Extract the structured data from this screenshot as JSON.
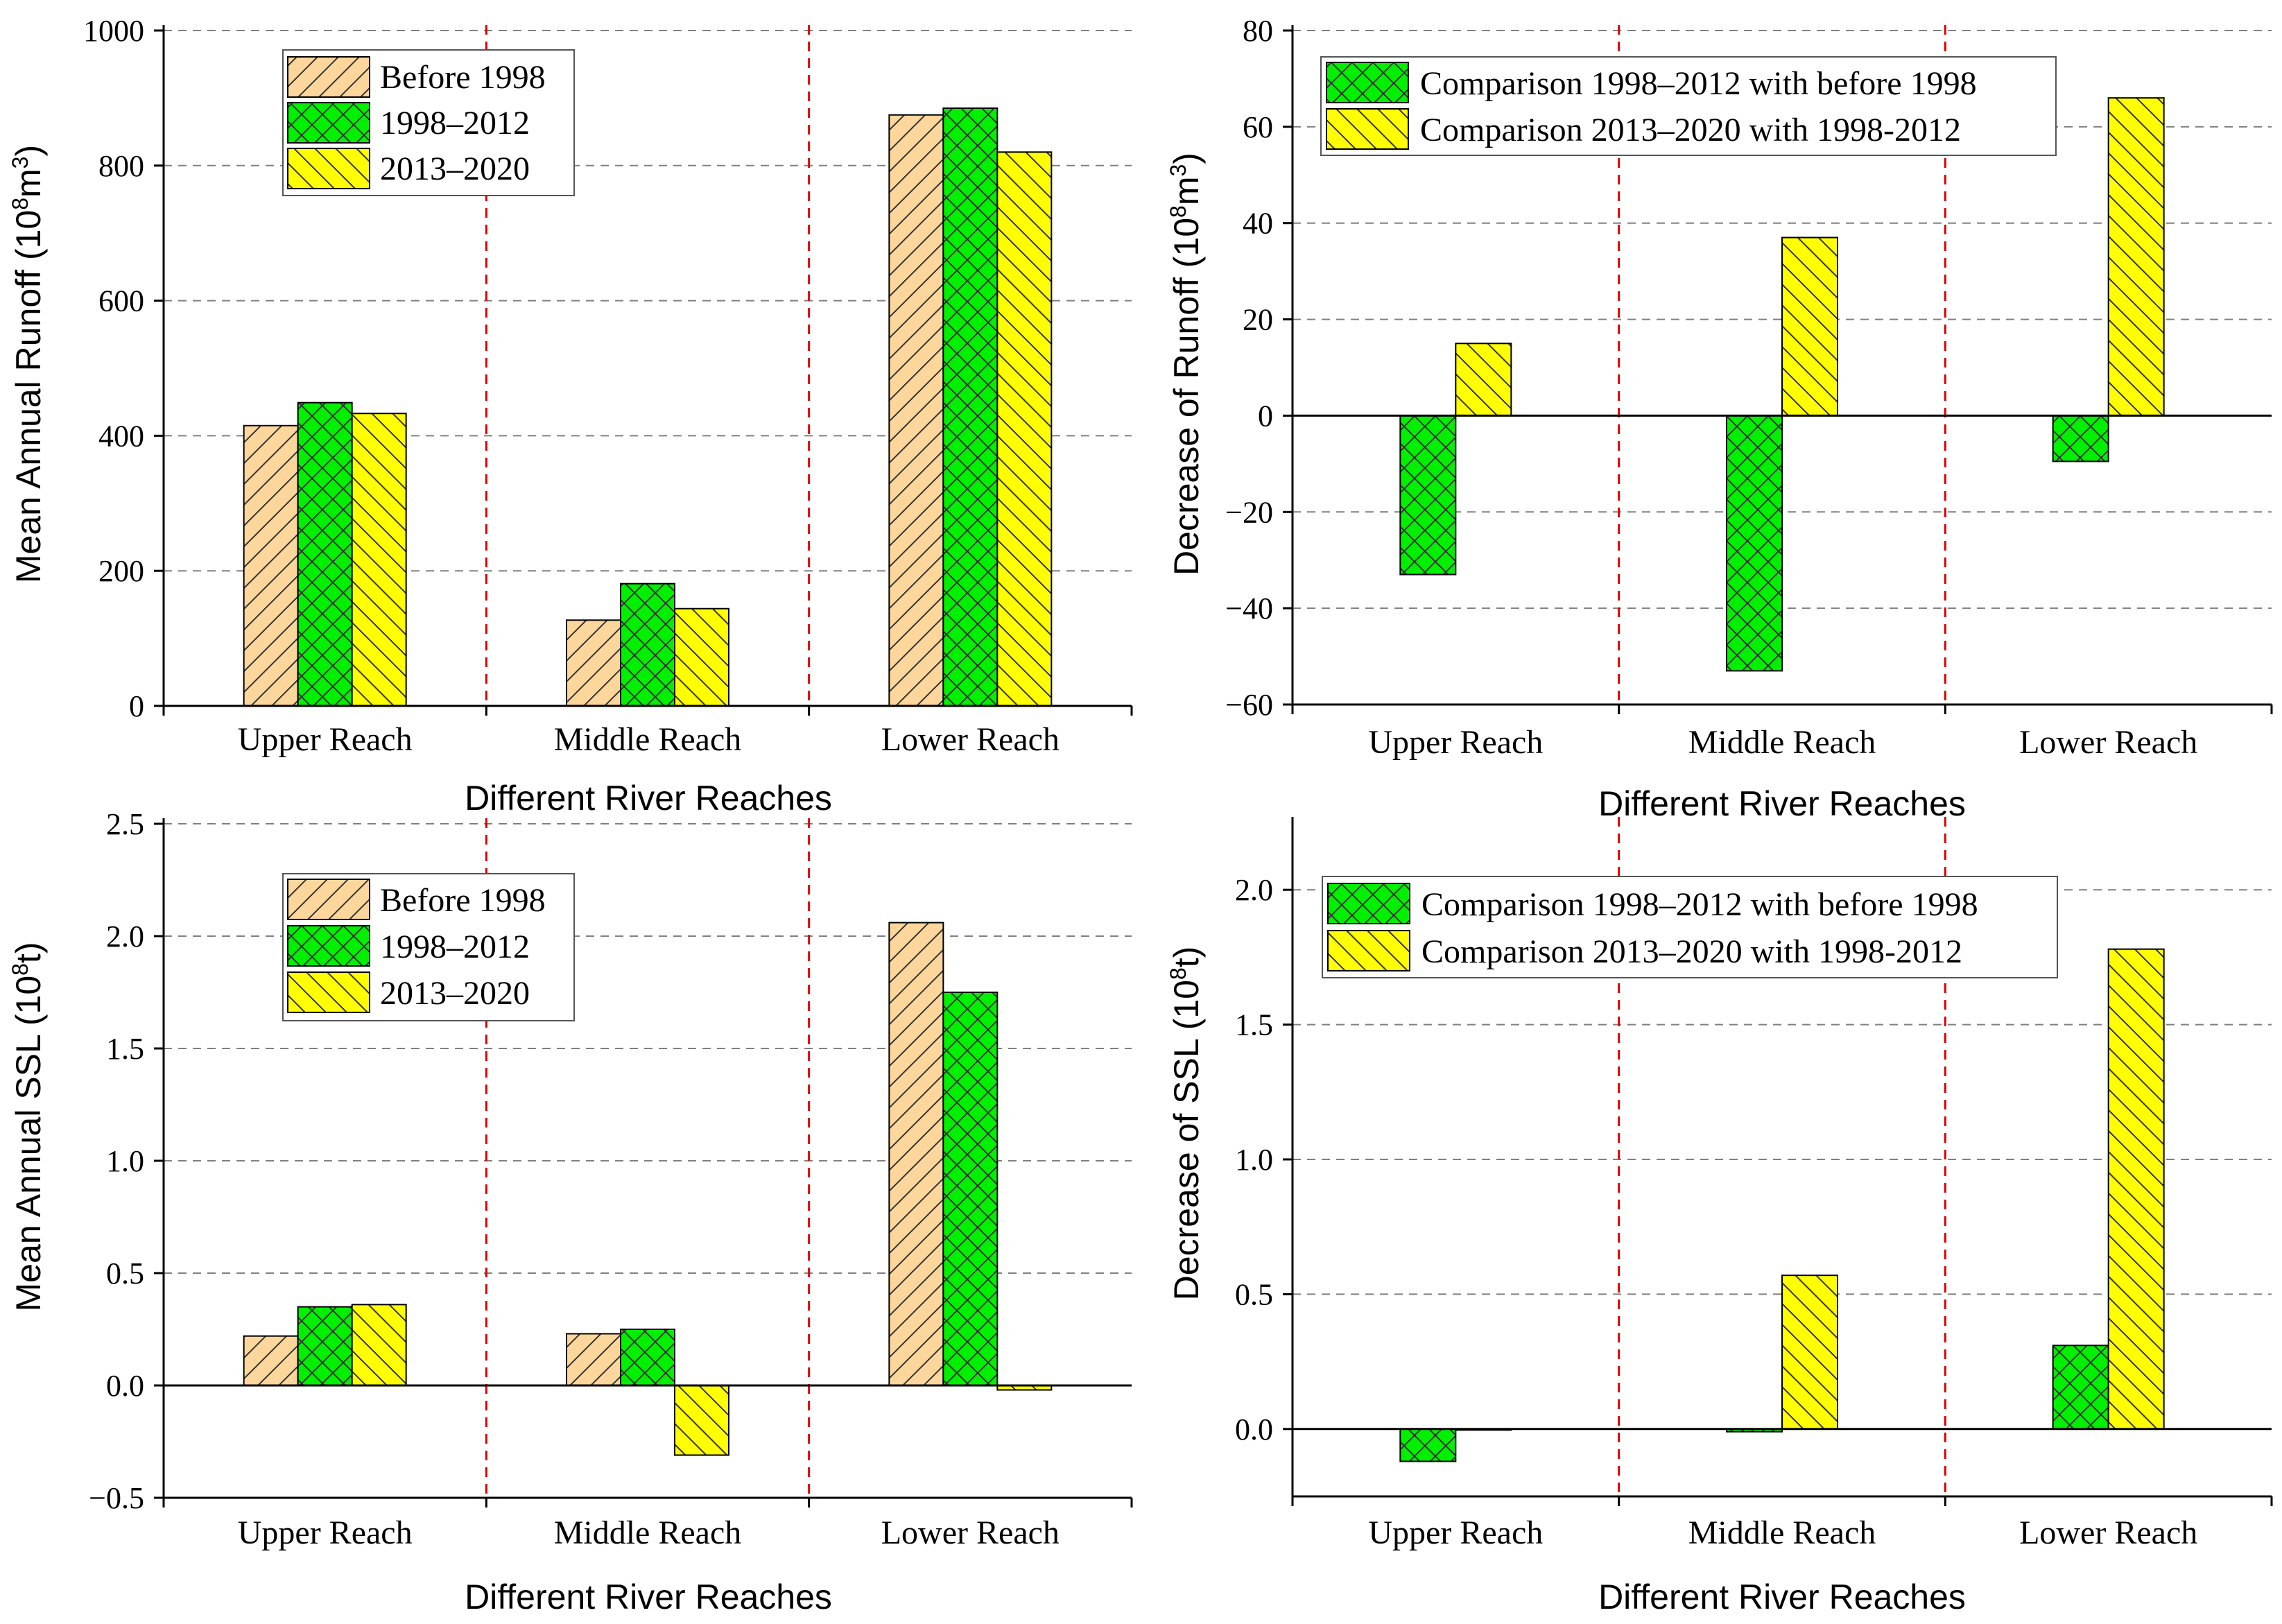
{
  "colors": {
    "before": "#FDD69B",
    "mid": "#00F000",
    "recent": "#FFFF00",
    "separator": "#E00000",
    "grid": "#808080"
  },
  "chart_data": [
    {
      "type": "bar",
      "title": "",
      "xlabel": "Different River Reaches",
      "ylabel": "Mean Annual Runoff (10⁸m³)",
      "categories": [
        "Upper Reach",
        "Middle Reach",
        "Lower Reach"
      ],
      "ylim": [
        0,
        1000
      ],
      "yticks": [
        0,
        200,
        400,
        600,
        800,
        1000
      ],
      "ytick_labels": [
        "0",
        "200",
        "400",
        "600",
        "800",
        "1000"
      ],
      "grid": "horizontal-dashed",
      "legend_position": "top-left",
      "series": [
        {
          "name": "Before 1998",
          "values": [
            415,
            127,
            875
          ],
          "color_key": "before",
          "hatch": "forward"
        },
        {
          "name": "1998–2012",
          "values": [
            449,
            181,
            885
          ],
          "color_key": "mid",
          "hatch": "cross"
        },
        {
          "name": "2013–2020",
          "values": [
            433,
            144,
            820
          ],
          "color_key": "recent",
          "hatch": "back"
        }
      ]
    },
    {
      "type": "bar",
      "title": "",
      "xlabel": "Different River Reaches",
      "ylabel": "Decrease of Runoff (10⁸m³)",
      "categories": [
        "Upper Reach",
        "Middle Reach",
        "Lower Reach"
      ],
      "ylim": [
        -60,
        80
      ],
      "yticks": [
        -60,
        -40,
        -20,
        0,
        20,
        40,
        60,
        80
      ],
      "ytick_labels": [
        "−60",
        "−40",
        "−20",
        "0",
        "20",
        "40",
        "60",
        "80"
      ],
      "grid": "horizontal-dashed",
      "legend_position": "top-left",
      "series": [
        {
          "name": "Comparison 1998–2012 with before 1998",
          "values": [
            -33,
            -53,
            -9.5
          ],
          "color_key": "mid",
          "hatch": "cross"
        },
        {
          "name": "Comparison 2013–2020 with 1998-2012",
          "values": [
            15,
            37,
            66
          ],
          "color_key": "recent",
          "hatch": "back"
        }
      ]
    },
    {
      "type": "bar",
      "title": "",
      "xlabel": "Different River Reaches",
      "ylabel": "Mean Annual SSL (10⁸t)",
      "categories": [
        "Upper Reach",
        "Middle Reach",
        "Lower Reach"
      ],
      "ylim": [
        -0.5,
        2.5
      ],
      "yticks": [
        -0.5,
        0,
        0.5,
        1.0,
        1.5,
        2.0,
        2.5
      ],
      "ytick_labels": [
        "−0.5",
        "0.0",
        "0.5",
        "1.0",
        "1.5",
        "2.0",
        "2.5"
      ],
      "grid": "horizontal-dashed",
      "legend_position": "top-left",
      "series": [
        {
          "name": "Before 1998",
          "values": [
            0.22,
            0.23,
            2.06
          ],
          "color_key": "before",
          "hatch": "forward"
        },
        {
          "name": "1998–2012",
          "values": [
            0.35,
            0.25,
            1.75
          ],
          "color_key": "mid",
          "hatch": "cross"
        },
        {
          "name": "2013–2020",
          "values": [
            0.36,
            -0.31,
            -0.02
          ],
          "color_key": "recent",
          "hatch": "back"
        }
      ]
    },
    {
      "type": "bar",
      "title": "",
      "xlabel": "Different River Reaches",
      "ylabel": "Decrease of SSL (10⁸t)",
      "categories": [
        "Upper Reach",
        "Middle Reach",
        "Lower Reach"
      ],
      "ylim": [
        -0.25,
        2.25
      ],
      "yticks": [
        0,
        0.5,
        1.0,
        1.5,
        2.0
      ],
      "ytick_labels": [
        "0.0",
        "0.5",
        "1.0",
        "1.5",
        "2.0"
      ],
      "grid": "horizontal-dashed",
      "legend_position": "top-left",
      "series": [
        {
          "name": "Comparison 1998–2012 with before 1998",
          "values": [
            -0.12,
            -0.01,
            0.31
          ],
          "color_key": "mid",
          "hatch": "cross"
        },
        {
          "name": "Comparison 2013–2020 with 1998-2012",
          "values": [
            0.0,
            0.57,
            1.78
          ],
          "color_key": "recent",
          "hatch": "back"
        }
      ]
    }
  ]
}
